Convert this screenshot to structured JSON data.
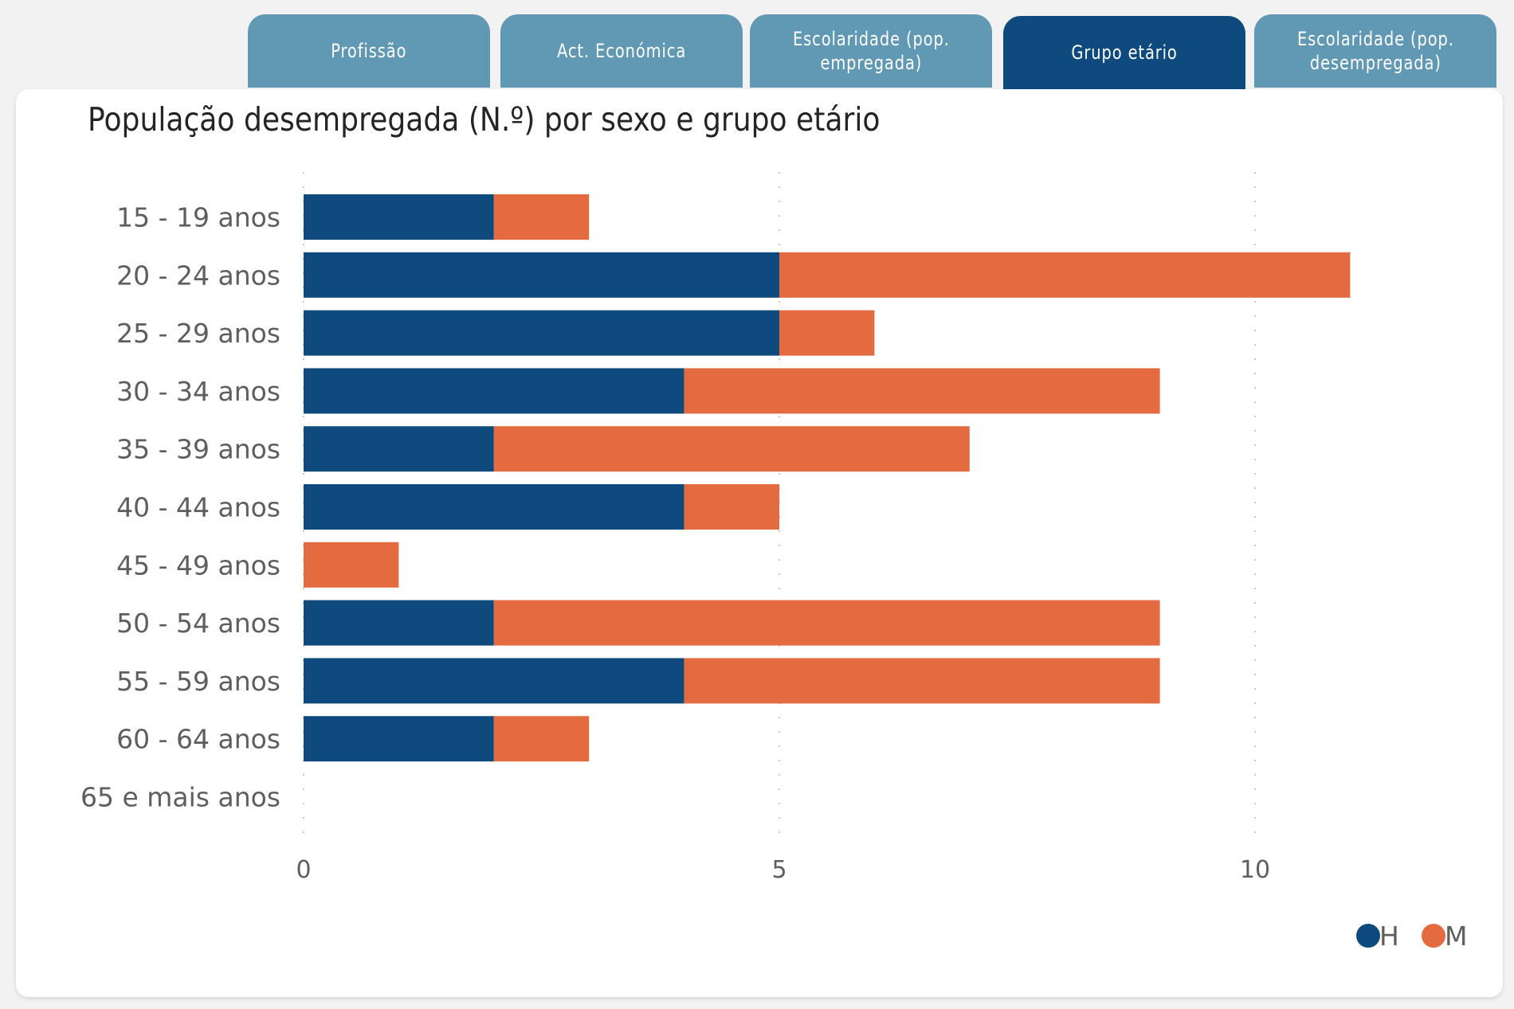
{
  "tabs": [
    {
      "label": "Profissão",
      "active": false
    },
    {
      "label": "Act. Económica",
      "active": false
    },
    {
      "label": "Escolaridade (pop.\nempregada)",
      "active": false
    },
    {
      "label": "Grupo etário",
      "active": true
    },
    {
      "label": "Escolaridade (pop.\ndesempregada)",
      "active": false
    }
  ],
  "colors": {
    "tab_inactive": "#6198b3",
    "tab_active": "#0e4a7d",
    "series_h": "#0e4a7d",
    "series_m": "#e46b40"
  },
  "chart_data": {
    "type": "bar",
    "orientation": "horizontal",
    "stacked": true,
    "title": "População desempregada (N.º) por sexo e grupo etário",
    "xlabel": "",
    "ylabel": "",
    "categories": [
      "15 - 19 anos",
      "20 - 24 anos",
      "25 - 29 anos",
      "30 - 34 anos",
      "35 - 39 anos",
      "40 - 44 anos",
      "45 - 49 anos",
      "50 - 54 anos",
      "55 - 59 anos",
      "60 - 64 anos",
      "65 e mais anos"
    ],
    "series": [
      {
        "name": "H",
        "color": "#0e4a7d",
        "values": [
          2,
          5,
          5,
          4,
          2,
          4,
          0,
          2,
          4,
          2,
          0
        ]
      },
      {
        "name": "M",
        "color": "#e46b40",
        "values": [
          1,
          6,
          1,
          5,
          5,
          1,
          1,
          7,
          5,
          1,
          0
        ]
      }
    ],
    "xlim": [
      0,
      12
    ],
    "xticks": [
      0,
      5,
      10
    ],
    "xtick_labels": [
      "0",
      "5",
      "10"
    ],
    "grid": "vertical dotted",
    "legend": {
      "position": "bottom-right",
      "entries": [
        "H",
        "M"
      ]
    }
  }
}
